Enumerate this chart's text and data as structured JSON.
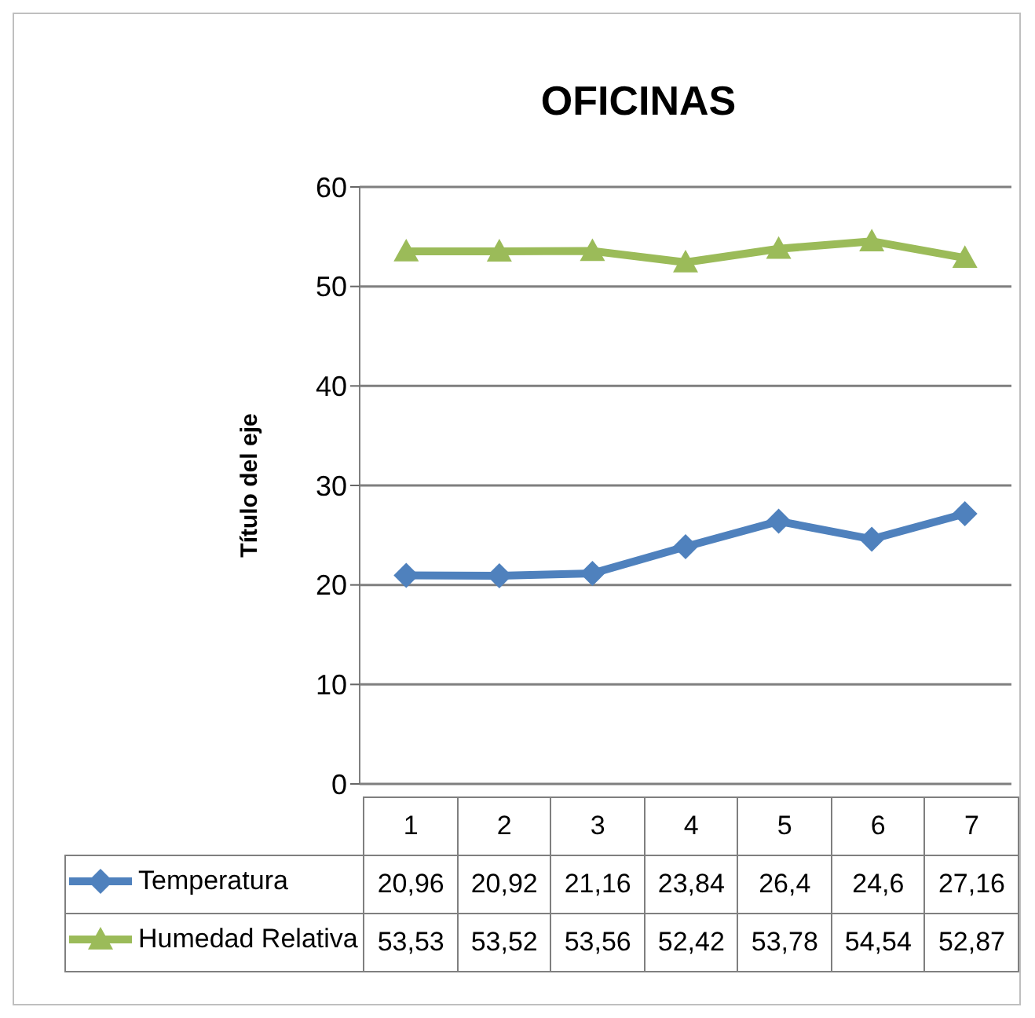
{
  "chart_data": {
    "type": "line",
    "title": "OFICINAS",
    "ylabel": "Título del eje",
    "categories": [
      "1",
      "2",
      "3",
      "4",
      "5",
      "6",
      "7"
    ],
    "series": [
      {
        "name": "Temperatura",
        "color": "#4f81bd",
        "marker": "diamond",
        "values": [
          20.96,
          20.92,
          21.16,
          23.84,
          26.4,
          24.6,
          27.16
        ],
        "value_labels": [
          "20,96",
          "20,92",
          "21,16",
          "23,84",
          "26,4",
          "24,6",
          "27,16"
        ]
      },
      {
        "name": "Humedad Relativa",
        "color": "#9bbb59",
        "marker": "triangle",
        "values": [
          53.53,
          53.52,
          53.56,
          52.42,
          53.78,
          54.54,
          52.87
        ],
        "value_labels": [
          "53,53",
          "53,52",
          "53,56",
          "52,42",
          "53,78",
          "54,54",
          "52,87"
        ]
      }
    ],
    "ylim": [
      0,
      60
    ],
    "yticks": [
      0,
      10,
      20,
      30,
      40,
      50,
      60
    ],
    "grid": "y",
    "legend": "bottom"
  }
}
